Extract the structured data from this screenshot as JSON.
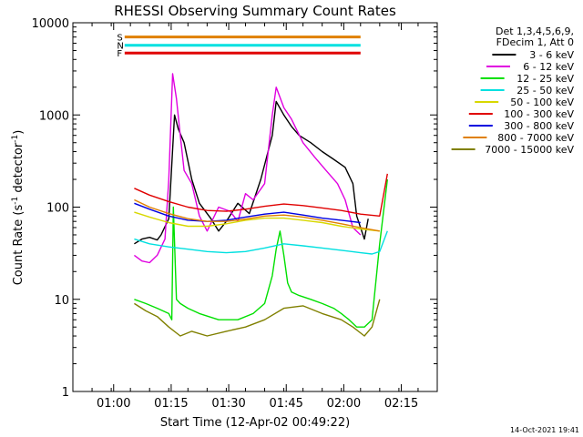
{
  "chart_data": {
    "type": "line",
    "title": "RHESSI Observing Summary Count Rates",
    "xlabel": "Start Time (12-Apr-02 00:49:22)",
    "ylabel_main": "Count Rate (s",
    "ylabel_sup1": "-1",
    "ylabel_mid": " detector",
    "ylabel_sup2": "-1",
    "ylabel_end": ")",
    "x_unit": "minutes after 00:49:22",
    "xlim": [
      0,
      95
    ],
    "ylim": [
      1,
      10000
    ],
    "yscale": "log",
    "x_ticks": [
      {
        "label": "01:00",
        "x": 10.63
      },
      {
        "label": "01:15",
        "x": 25.63
      },
      {
        "label": "01:30",
        "x": 40.63
      },
      {
        "label": "01:45",
        "x": 55.63
      },
      {
        "label": "02:00",
        "x": 70.63
      },
      {
        "label": "02:15",
        "x": 85.63
      }
    ],
    "y_ticks": [
      {
        "label": "1",
        "v": 1
      },
      {
        "label": "10",
        "v": 10
      },
      {
        "label": "100",
        "v": 100
      },
      {
        "label": "1000",
        "v": 1000
      },
      {
        "label": "10000",
        "v": 10000
      }
    ],
    "legend_header": [
      "Det 1,3,4,5,6,9,",
      "FDecim 1, Att 0"
    ],
    "legend_position": "right",
    "series": [
      {
        "name": "3 - 6 keV",
        "color": "#000000",
        "x": [
          16,
          18,
          20,
          22,
          23,
          25,
          26.5,
          27.5,
          29,
          31,
          33,
          36,
          38,
          40,
          43,
          46,
          49,
          52,
          53,
          55,
          57,
          59,
          62,
          65,
          68,
          71,
          73,
          74,
          75,
          76,
          77
        ],
        "y": [
          40,
          45,
          47,
          44,
          50,
          75,
          1000,
          700,
          500,
          200,
          110,
          75,
          55,
          70,
          110,
          85,
          200,
          600,
          1400,
          1000,
          750,
          600,
          500,
          400,
          330,
          270,
          180,
          80,
          60,
          45,
          75
        ]
      },
      {
        "name": "6 - 12 keV",
        "color": "#e000e0",
        "x": [
          16,
          18,
          20,
          22,
          24,
          25,
          26,
          27,
          28,
          29,
          31,
          33,
          35,
          38,
          41,
          43,
          45,
          47,
          50,
          52,
          53,
          55,
          57,
          60,
          63,
          66,
          69,
          71,
          73,
          75
        ],
        "y": [
          30,
          26,
          25,
          30,
          45,
          200,
          2800,
          1500,
          600,
          250,
          180,
          80,
          55,
          100,
          90,
          70,
          140,
          120,
          180,
          1000,
          2000,
          1200,
          900,
          500,
          350,
          250,
          180,
          120,
          60,
          50
        ]
      },
      {
        "name": "12 - 25 keV",
        "color": "#00e000",
        "x": [
          16,
          19,
          22,
          25,
          25.8,
          26.2,
          27,
          28,
          30,
          33,
          38,
          43,
          47,
          50,
          52,
          53,
          54,
          55,
          56,
          57,
          59,
          62,
          65,
          68,
          70,
          72,
          74,
          76,
          78,
          80,
          82
        ],
        "y": [
          10,
          9,
          8,
          7,
          6,
          100,
          10,
          9,
          8,
          7,
          6,
          6,
          7,
          9,
          18,
          35,
          55,
          30,
          15,
          12,
          11,
          10,
          9,
          8,
          7,
          6,
          5,
          5,
          6,
          40,
          200
        ]
      },
      {
        "name": "25 - 50 keV",
        "color": "#00e0e0",
        "x": [
          16,
          20,
          25,
          30,
          35,
          40,
          45,
          50,
          55,
          60,
          65,
          70,
          75,
          78,
          80,
          82
        ],
        "y": [
          45,
          40,
          37,
          35,
          33,
          32,
          33,
          36,
          40,
          38,
          36,
          34,
          32,
          31,
          33,
          55
        ]
      },
      {
        "name": "50 - 100 keV",
        "color": "#d8d800",
        "x": [
          16,
          20,
          25,
          30,
          35,
          40,
          45,
          50,
          55,
          60,
          65,
          70,
          75,
          80
        ],
        "y": [
          88,
          78,
          68,
          62,
          62,
          66,
          72,
          76,
          76,
          72,
          68,
          62,
          58,
          55
        ]
      },
      {
        "name": "100 - 300 keV",
        "color": "#e00000",
        "x": [
          16,
          20,
          25,
          30,
          35,
          40,
          45,
          50,
          55,
          60,
          65,
          70,
          75,
          80,
          82
        ],
        "y": [
          160,
          135,
          115,
          100,
          92,
          90,
          95,
          102,
          108,
          104,
          98,
          92,
          84,
          80,
          230
        ]
      },
      {
        "name": "300 - 800 keV",
        "color": "#0000e0",
        "x": [
          16,
          20,
          25,
          30,
          35,
          40,
          45,
          50,
          55,
          60,
          65,
          70,
          75
        ],
        "y": [
          110,
          95,
          80,
          72,
          70,
          72,
          78,
          84,
          88,
          82,
          76,
          72,
          68
        ]
      },
      {
        "name": "800 - 7000 keV",
        "color": "#e08000",
        "x": [
          16,
          20,
          25,
          30,
          35,
          40,
          45,
          50,
          55,
          60,
          65,
          70,
          75,
          80
        ],
        "y": [
          120,
          100,
          85,
          75,
          70,
          70,
          74,
          80,
          82,
          78,
          72,
          66,
          60,
          55
        ]
      },
      {
        "name": "7000 - 15000 keV",
        "color": "#808000",
        "x": [
          16,
          19,
          22,
          25,
          28,
          31,
          35,
          40,
          45,
          50,
          55,
          60,
          65,
          70,
          73,
          76,
          78,
          80
        ],
        "y": [
          9,
          7.5,
          6.5,
          5,
          4,
          4.5,
          4,
          4.5,
          5,
          6,
          8,
          8.5,
          7,
          6,
          5,
          4,
          5,
          10
        ]
      }
    ],
    "status_flags": [
      {
        "label": "S",
        "color": "#e08000",
        "value": 7000
      },
      {
        "label": "N",
        "color": "#00e0e0",
        "value": 5700
      },
      {
        "label": "F",
        "color": "#e00000",
        "value": 4700
      }
    ],
    "timestamp": "14-Oct-2021 19:41"
  }
}
